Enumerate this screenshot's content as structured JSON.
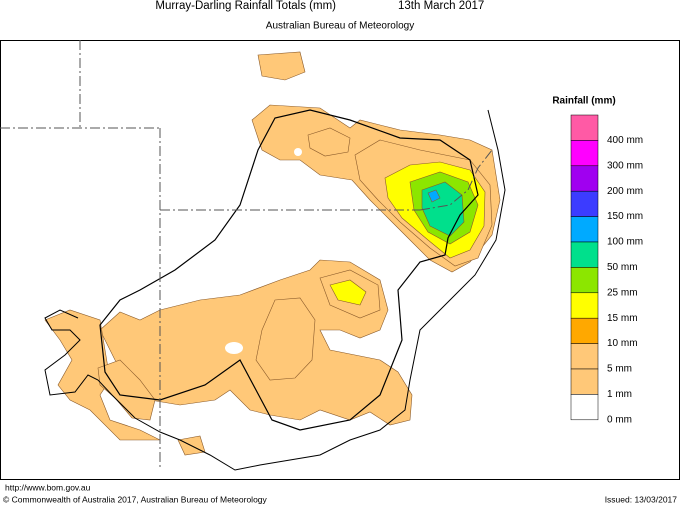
{
  "header": {
    "title": "Murray-Darling Rainfall Totals (mm)",
    "date": "13th March 2017",
    "subtitle": "Australian Bureau of Meteorology"
  },
  "legend": {
    "title": "Rainfall (mm)",
    "items": [
      {
        "label": "400 mm",
        "color": "#ff5aa5"
      },
      {
        "label": "300 mm",
        "color": "#ff00ff"
      },
      {
        "label": "200 mm",
        "color": "#a000f0"
      },
      {
        "label": "150 mm",
        "color": "#3c3cff"
      },
      {
        "label": "100 mm",
        "color": "#00aaff"
      },
      {
        "label": "50 mm",
        "color": "#00e08c"
      },
      {
        "label": "25 mm",
        "color": "#8ce600"
      },
      {
        "label": "15 mm",
        "color": "#ffff00"
      },
      {
        "label": "10 mm",
        "color": "#ffa800"
      },
      {
        "label": "5 mm",
        "color": "#ffc878"
      },
      {
        "label": "1 mm",
        "color": "#ffc878"
      },
      {
        "label": "0 mm",
        "color": "#ffffff"
      }
    ]
  },
  "footer": {
    "url": "http://www.bom.gov.au",
    "copyright": "© Commonwealth of Australia 2017, Australian Bureau of Meteorology",
    "issued": "Issued: 13/03/2017"
  }
}
